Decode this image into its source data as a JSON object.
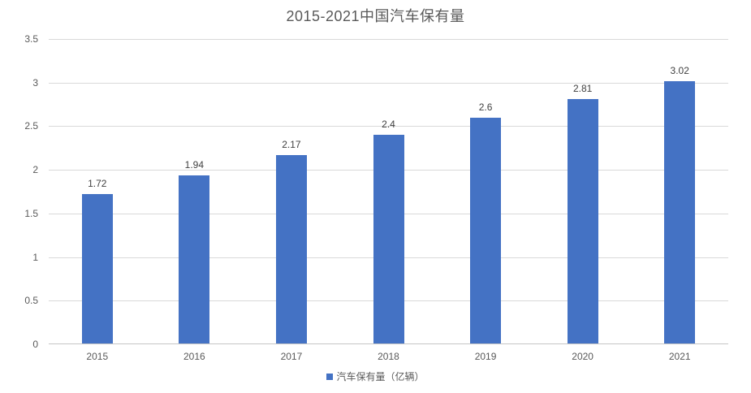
{
  "chart_data": {
    "type": "bar",
    "title": "2015-2021中国汽车保有量",
    "categories": [
      "2015",
      "2016",
      "2017",
      "2018",
      "2019",
      "2020",
      "2021"
    ],
    "values": [
      1.72,
      1.94,
      2.17,
      2.4,
      2.6,
      2.81,
      3.02
    ],
    "data_labels": [
      "1.72",
      "1.94",
      "2.17",
      "2.4",
      "2.6",
      "2.81",
      "3.02"
    ],
    "legend": "汽车保有量（亿辆）",
    "legend_position": "bottom",
    "xlabel": "",
    "ylabel": "",
    "ylim": [
      0,
      3.5
    ],
    "ytick_step": 0.5,
    "yticks": [
      "0",
      "0.5",
      "1",
      "1.5",
      "2",
      "2.5",
      "3",
      "3.5"
    ],
    "grid": true,
    "colors": {
      "bar": "#4472c4",
      "title_text": "#595959",
      "axis_text": "#595959",
      "data_label_text": "#404040",
      "gridline": "#d9d9d9",
      "axis_line": "#c6c6c6",
      "background": "#ffffff"
    }
  }
}
